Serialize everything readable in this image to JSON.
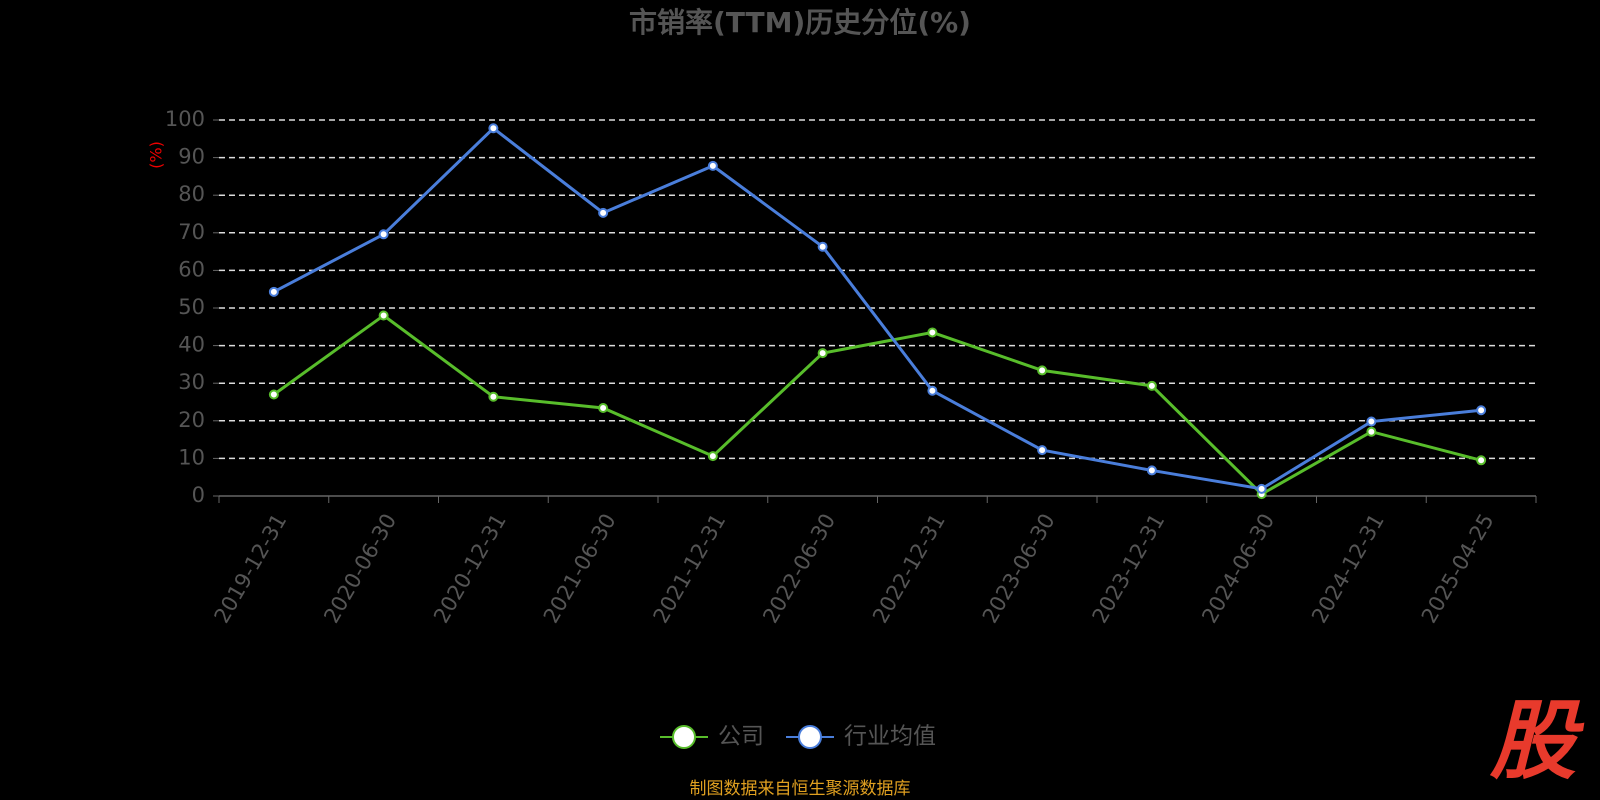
{
  "chart_data": {
    "type": "line",
    "title": "市销率(TTM)历史分位(%)",
    "y_label": "(%)",
    "categories": [
      "2019-12-31",
      "2020-06-30",
      "2020-12-31",
      "2021-06-30",
      "2021-12-31",
      "2022-06-30",
      "2022-12-31",
      "2023-06-30",
      "2023-12-31",
      "2024-06-30",
      "2024-12-31",
      "2025-04-25"
    ],
    "series": [
      {
        "name": "公司",
        "color": "#58bd2b",
        "values": [
          27,
          48,
          26.4,
          23.4,
          10.6,
          38,
          43.5,
          33.4,
          29.3,
          0.5,
          17.1,
          9.5
        ]
      },
      {
        "name": "行业均值",
        "color": "#4a7edb",
        "values": [
          54.3,
          69.6,
          97.8,
          75.3,
          87.8,
          66.3,
          28,
          12.2,
          6.8,
          1.9,
          19.8,
          22.8
        ]
      }
    ],
    "ylim": [
      0,
      100
    ],
    "yticks": [
      0,
      10,
      20,
      30,
      40,
      50,
      60,
      70,
      80,
      90,
      100
    ],
    "grid": true,
    "legend": "bottom",
    "source": "制图数据来自恒生聚源数据库",
    "watermark": "股"
  }
}
